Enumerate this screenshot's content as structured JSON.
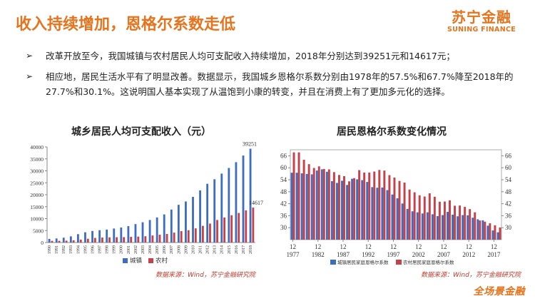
{
  "header": {
    "title": "收入持续增加，恩格尔系数走低",
    "logo_cn": "苏宁金融",
    "logo_en": "SUNING FINANCE"
  },
  "bullets": [
    {
      "arrow": "➢",
      "text": "改革开放至今，我国城镇与农村居民人均可支配收入持续增加，2018年分别达到39251元和14617元；"
    },
    {
      "arrow": "➢",
      "text": "相应地，居民生活水平有了明显改善。数据显示，我国城乡恩格尔系数分别由1978年的57.5%和67.7%降至2018年的27.7%和30.1%。这说明国人基本实现了从温饱到小康的转变，并且在消费上有了更加多元化的选择。"
    }
  ],
  "footer": {
    "source1": "数据来源：Wind，苏宁金融研究院",
    "source2": "数据来源：Wind，苏宁金融研究院",
    "brand": "全场景金融"
  },
  "colors": {
    "urban": "#3d6dbf",
    "rural": "#c7414a",
    "accent": "#e8731d"
  },
  "chart_data": [
    {
      "type": "bar",
      "title": "城乡居民人均可支配收入（元）",
      "categories": [
        "1990",
        "1991",
        "1992",
        "1993",
        "1994",
        "1995",
        "1996",
        "1997",
        "1998",
        "1999",
        "2000",
        "2001",
        "2002",
        "2003",
        "2004",
        "2005",
        "2006",
        "2007",
        "2008",
        "2009",
        "2010",
        "2011",
        "2012",
        "2013",
        "2014",
        "2015",
        "2016",
        "2017",
        "2018"
      ],
      "ylim": [
        0,
        40000
      ],
      "yticks": [
        0,
        5000,
        10000,
        15000,
        20000,
        25000,
        30000,
        35000,
        40000
      ],
      "series": [
        {
          "name": "城镇",
          "values": [
            1510,
            1700,
            2027,
            2577,
            3496,
            4283,
            4839,
            5160,
            5425,
            5854,
            6280,
            6860,
            7703,
            8472,
            9422,
            10493,
            11760,
            13786,
            15781,
            17175,
            19109,
            21810,
            24565,
            26467,
            28844,
            31195,
            33616,
            36396,
            39251
          ]
        },
        {
          "name": "农村",
          "values": [
            686,
            709,
            784,
            922,
            1221,
            1578,
            1926,
            2090,
            2162,
            2210,
            2253,
            2366,
            2476,
            2622,
            2936,
            3255,
            3587,
            4140,
            4761,
            5153,
            5919,
            6977,
            7917,
            9430,
            10489,
            11422,
            12363,
            13432,
            14617
          ]
        }
      ],
      "data_labels": [
        {
          "series": "城镇",
          "category": "2018",
          "text": "39251"
        },
        {
          "series": "农村",
          "category": "2018",
          "text": "14617"
        }
      ],
      "legend": "bottom"
    },
    {
      "type": "bar",
      "title": "居民恩格尔系数变化情况",
      "categories": [
        "1977",
        "1978",
        "1979",
        "1980",
        "1981",
        "1982",
        "1983",
        "1984",
        "1985",
        "1986",
        "1987",
        "1988",
        "1989",
        "1990",
        "1991",
        "1992",
        "1993",
        "1994",
        "1995",
        "1996",
        "1997",
        "1998",
        "1999",
        "2000",
        "2001",
        "2002",
        "2003",
        "2004",
        "2005",
        "2006",
        "2007",
        "2008",
        "2009",
        "2010",
        "2011",
        "2012",
        "2013",
        "2014",
        "2015",
        "2016",
        "2017",
        "2018"
      ],
      "x_tick_labels": [
        {
          "month": "12",
          "year": "1977"
        },
        {
          "month": "12",
          "year": "1982"
        },
        {
          "month": "12",
          "year": "1987"
        },
        {
          "month": "12",
          "year": "1992"
        },
        {
          "month": "12",
          "year": "1997"
        },
        {
          "month": "12",
          "year": "2002"
        },
        {
          "month": "12",
          "year": "2007"
        },
        {
          "month": "12",
          "year": "2012"
        },
        {
          "month": "12",
          "year": "2017"
        }
      ],
      "ylim": [
        24,
        69
      ],
      "yticks_left": [
        30,
        36,
        42,
        48,
        54,
        60,
        66
      ],
      "yticks_right": [
        30,
        36,
        42,
        48,
        54,
        60,
        66
      ],
      "series": [
        {
          "name": "城镇居民家庭恩格尔系数",
          "values": [
            57.5,
            57.5,
            57.2,
            56.9,
            56.7,
            58.6,
            59.2,
            58.0,
            53.3,
            52.4,
            53.5,
            51.4,
            54.5,
            54.2,
            53.8,
            52.9,
            50.3,
            50.0,
            50.1,
            48.8,
            46.6,
            44.7,
            42.1,
            39.4,
            38.2,
            37.7,
            37.1,
            37.7,
            36.7,
            35.8,
            36.3,
            37.9,
            36.5,
            35.7,
            36.3,
            36.2,
            35.0,
            34.2,
            33.7,
            31.0,
            28.6,
            27.7
          ]
        },
        {
          "name": "农村居民家庭恩格尔系数",
          "values": [
            67.7,
            67.7,
            64.0,
            61.8,
            59.9,
            60.7,
            59.4,
            59.2,
            57.8,
            56.4,
            55.8,
            53.2,
            54.8,
            58.8,
            57.6,
            57.6,
            58.1,
            58.9,
            58.6,
            56.3,
            55.1,
            53.4,
            52.6,
            49.1,
            47.7,
            46.2,
            45.6,
            47.2,
            45.5,
            43.0,
            43.1,
            43.7,
            41.0,
            41.1,
            40.4,
            39.3,
            37.7,
            33.6,
            33.0,
            32.2,
            31.2,
            30.1
          ]
        }
      ],
      "legend": "bottom"
    }
  ]
}
